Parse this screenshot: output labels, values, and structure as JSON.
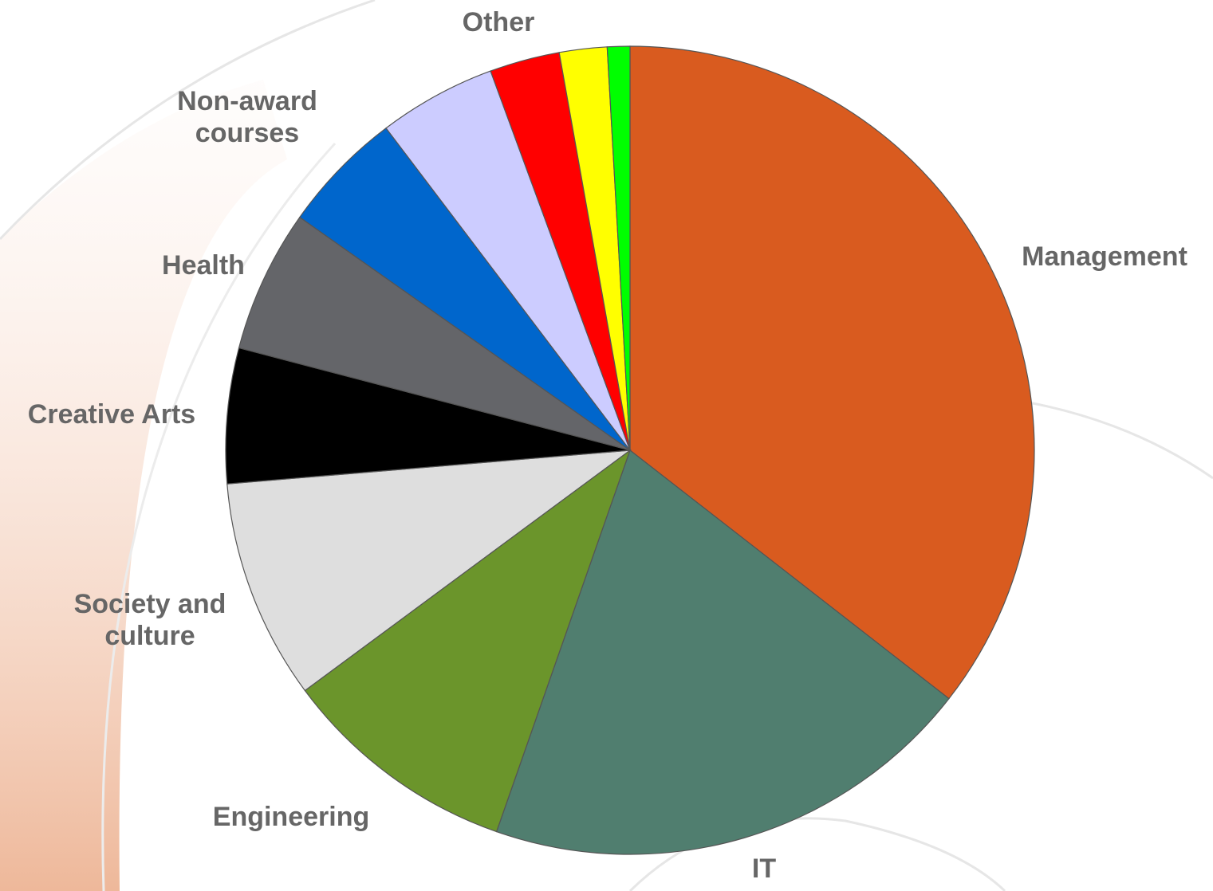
{
  "chart_data": {
    "type": "pie",
    "categories": [
      "Management",
      "IT",
      "Engineering",
      "Society and culture",
      "Creative Arts",
      "Health",
      "Non-award courses",
      null,
      "Other",
      null,
      null
    ],
    "values": [
      35.5,
      19.8,
      9.5,
      8.8,
      5.4,
      5.7,
      4.9,
      4.7,
      2.8,
      1.9,
      0.9
    ],
    "colors": [
      "#D95B1F",
      "#507E6F",
      "#6B952B",
      "#DEDEDE",
      "#000000",
      "#646569",
      "#0066CC",
      "#CCCCFF",
      "#FF0000",
      "#FFFF00",
      "#00FF00"
    ]
  }
}
